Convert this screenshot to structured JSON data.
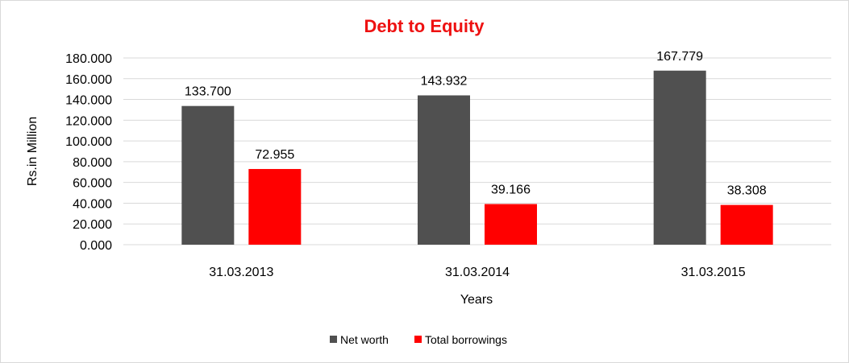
{
  "chart_data": {
    "type": "bar",
    "title": "Debt to Equity",
    "xlabel": "Years",
    "ylabel": "Rs.in Million",
    "categories": [
      "31.03.2013",
      "31.03.2014",
      "31.03.2015"
    ],
    "series": [
      {
        "name": "Net worth",
        "values": [
          133.7,
          143.932,
          167.779
        ],
        "color": "#505050"
      },
      {
        "name": "Total borrowings",
        "values": [
          72.955,
          39.166,
          38.308
        ],
        "color": "#ff0000"
      }
    ],
    "data_labels": [
      [
        "133.700",
        "143.932",
        "167.779"
      ],
      [
        "72.955",
        "39.166",
        "38.308"
      ]
    ],
    "ylim": [
      0,
      180
    ],
    "yticks": [
      "0.000",
      "20.000",
      "40.000",
      "60.000",
      "80.000",
      "100.000",
      "120.000",
      "140.000",
      "160.000",
      "180.000"
    ],
    "grid": true,
    "legend": "bottom",
    "title_color": "#ee1111"
  }
}
